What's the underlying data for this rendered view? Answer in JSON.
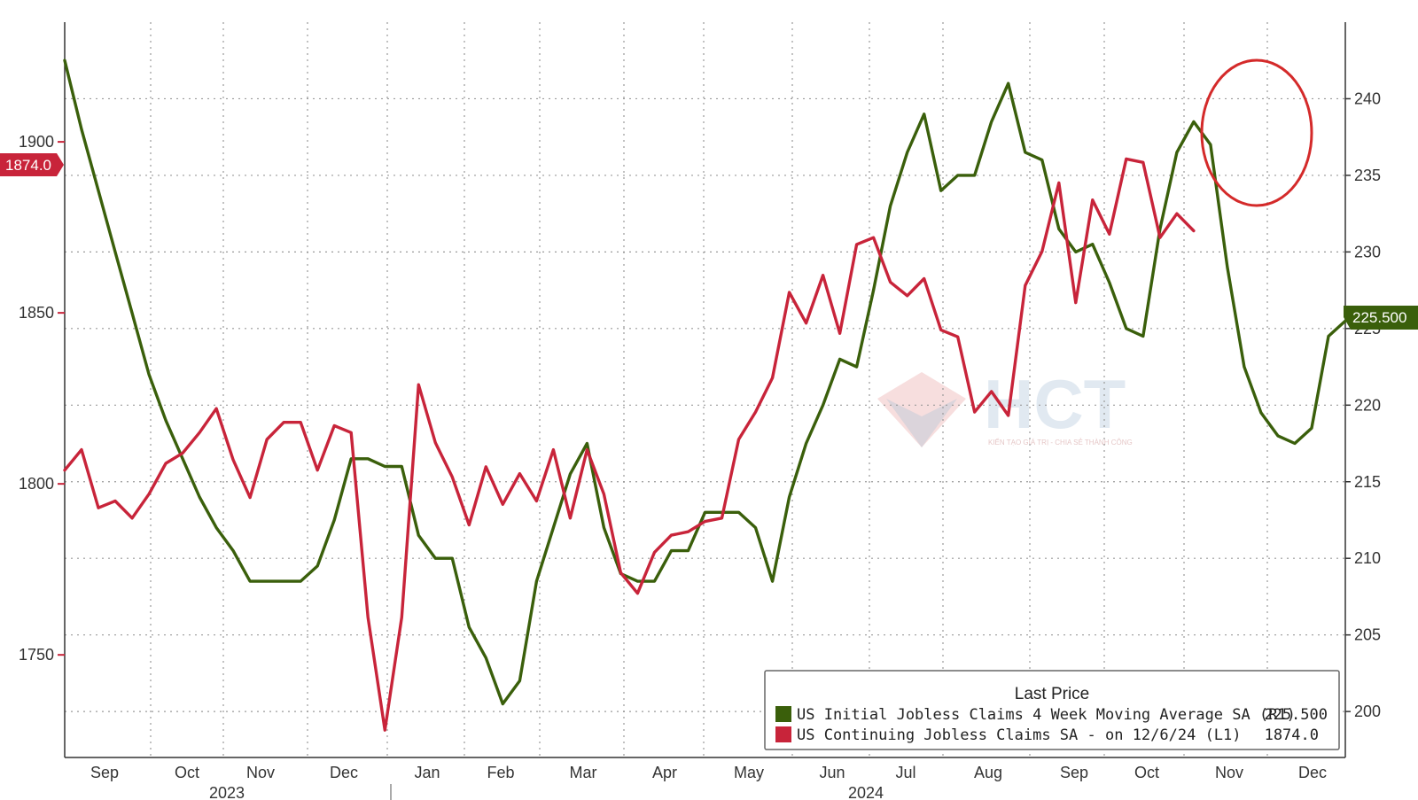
{
  "chart_data": {
    "type": "line",
    "x_axis": {
      "months": [
        "Sep",
        "Oct",
        "Nov",
        "Dec",
        "Jan",
        "Feb",
        "Mar",
        "Apr",
        "May",
        "Jun",
        "Jul",
        "Aug",
        "Sep",
        "Oct",
        "Nov",
        "Dec"
      ],
      "years": [
        "2023",
        "2024"
      ]
    },
    "y_left": {
      "ticks": [
        "1900",
        "1850",
        "1800",
        "1750"
      ],
      "range": [
        1720,
        1935
      ]
    },
    "y_right": {
      "ticks": [
        "240",
        "235",
        "230",
        "225",
        "220",
        "215",
        "210",
        "205",
        "200"
      ],
      "range": [
        197,
        245
      ]
    },
    "grid": true,
    "legend": {
      "title": "Last Price",
      "placement": "bottom-right",
      "entries": [
        {
          "label": "US Initial Jobless Claims 4 Week Moving Average SA  (R1)",
          "value": "225.500",
          "color": "#3a5f0b"
        },
        {
          "label": "US Continuing Jobless Claims SA -  on 12/6/24  (L1)",
          "value": "1874.0",
          "color": "#c8243a"
        }
      ]
    },
    "last_value_tags": {
      "left": "1874.0",
      "right": "225.500"
    },
    "annotation": "red circle around latest continuing claims readings (Nov–Dec 2024)",
    "series": [
      {
        "name": "US Initial Jobless Claims 4 Week Moving Average SA  (R1)",
        "axis": "right",
        "color": "#3a5f0b",
        "values": [
          242.5,
          238,
          234,
          230,
          226,
          222,
          219,
          216.5,
          214,
          212,
          210.5,
          208.5,
          208.5,
          208.5,
          208.5,
          209.5,
          212.5,
          216.5,
          216.5,
          216,
          216,
          211.5,
          210,
          210,
          205.5,
          203.5,
          200.5,
          202,
          208.5,
          212,
          215.5,
          217.5,
          212,
          209,
          208.5,
          208.5,
          210.5,
          210.5,
          213,
          213,
          213,
          212,
          208.5,
          214,
          217.5,
          220,
          223,
          222.5,
          227.5,
          233,
          236.5,
          239,
          234,
          235,
          235,
          238.5,
          241,
          236.5,
          236,
          231.5,
          230,
          230.5,
          228,
          225,
          224.5,
          231.5,
          236.5,
          238.5,
          237,
          229,
          222.5,
          219.5,
          218,
          217.5,
          218.5,
          224.5,
          225.5
        ]
      },
      {
        "name": "US Continuing Jobless Claims SA -  on 12/6/24  (L1)",
        "axis": "left",
        "color": "#c8243a",
        "values": [
          1804,
          1810,
          1793,
          1795,
          1790,
          1797,
          1806,
          1809,
          1815,
          1822,
          1807,
          1796,
          1813,
          1818,
          1818,
          1804,
          1817,
          1815,
          1761,
          1728,
          1761,
          1829,
          1812,
          1802,
          1788,
          1805,
          1794,
          1803,
          1795,
          1810,
          1790,
          1810,
          1797,
          1774,
          1768,
          1780,
          1785,
          1786,
          1789,
          1790,
          1813,
          1821,
          1831,
          1856,
          1847,
          1861,
          1844,
          1870,
          1872,
          1859,
          1855,
          1860,
          1845,
          1843,
          1821,
          1827,
          1820,
          1858,
          1868,
          1888,
          1853,
          1883,
          1873,
          1895,
          1894,
          1872,
          1879,
          1874
        ]
      }
    ]
  }
}
